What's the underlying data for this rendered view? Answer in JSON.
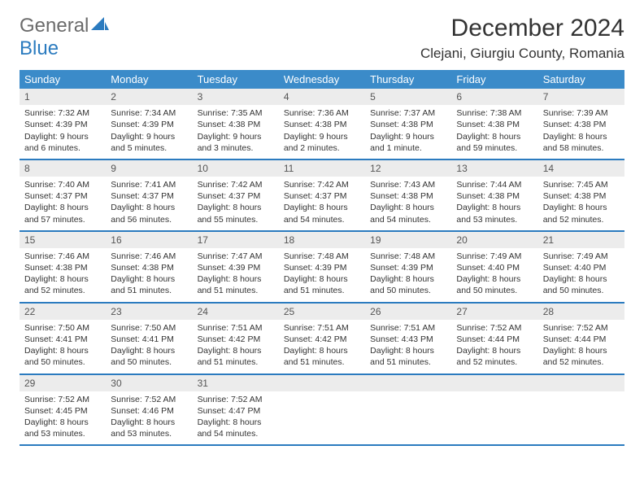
{
  "logo": {
    "text1": "General",
    "text2": "Blue"
  },
  "title": "December 2024",
  "location": "Clejani, Giurgiu County, Romania",
  "colors": {
    "headerBg": "#3b8bc9",
    "headerText": "#ffffff",
    "ruler": "#2b7bbf",
    "dayNumBg": "#ececec",
    "bodyText": "#333333",
    "logoGray": "#6b6b6b",
    "logoBlue": "#2b7bbf",
    "background": "#ffffff"
  },
  "dayNames": [
    "Sunday",
    "Monday",
    "Tuesday",
    "Wednesday",
    "Thursday",
    "Friday",
    "Saturday"
  ],
  "weeks": [
    [
      {
        "n": "1",
        "sr": "7:32 AM",
        "ss": "4:39 PM",
        "dl": "9 hours and 6 minutes."
      },
      {
        "n": "2",
        "sr": "7:34 AM",
        "ss": "4:39 PM",
        "dl": "9 hours and 5 minutes."
      },
      {
        "n": "3",
        "sr": "7:35 AM",
        "ss": "4:38 PM",
        "dl": "9 hours and 3 minutes."
      },
      {
        "n": "4",
        "sr": "7:36 AM",
        "ss": "4:38 PM",
        "dl": "9 hours and 2 minutes."
      },
      {
        "n": "5",
        "sr": "7:37 AM",
        "ss": "4:38 PM",
        "dl": "9 hours and 1 minute."
      },
      {
        "n": "6",
        "sr": "7:38 AM",
        "ss": "4:38 PM",
        "dl": "8 hours and 59 minutes."
      },
      {
        "n": "7",
        "sr": "7:39 AM",
        "ss": "4:38 PM",
        "dl": "8 hours and 58 minutes."
      }
    ],
    [
      {
        "n": "8",
        "sr": "7:40 AM",
        "ss": "4:37 PM",
        "dl": "8 hours and 57 minutes."
      },
      {
        "n": "9",
        "sr": "7:41 AM",
        "ss": "4:37 PM",
        "dl": "8 hours and 56 minutes."
      },
      {
        "n": "10",
        "sr": "7:42 AM",
        "ss": "4:37 PM",
        "dl": "8 hours and 55 minutes."
      },
      {
        "n": "11",
        "sr": "7:42 AM",
        "ss": "4:37 PM",
        "dl": "8 hours and 54 minutes."
      },
      {
        "n": "12",
        "sr": "7:43 AM",
        "ss": "4:38 PM",
        "dl": "8 hours and 54 minutes."
      },
      {
        "n": "13",
        "sr": "7:44 AM",
        "ss": "4:38 PM",
        "dl": "8 hours and 53 minutes."
      },
      {
        "n": "14",
        "sr": "7:45 AM",
        "ss": "4:38 PM",
        "dl": "8 hours and 52 minutes."
      }
    ],
    [
      {
        "n": "15",
        "sr": "7:46 AM",
        "ss": "4:38 PM",
        "dl": "8 hours and 52 minutes."
      },
      {
        "n": "16",
        "sr": "7:46 AM",
        "ss": "4:38 PM",
        "dl": "8 hours and 51 minutes."
      },
      {
        "n": "17",
        "sr": "7:47 AM",
        "ss": "4:39 PM",
        "dl": "8 hours and 51 minutes."
      },
      {
        "n": "18",
        "sr": "7:48 AM",
        "ss": "4:39 PM",
        "dl": "8 hours and 51 minutes."
      },
      {
        "n": "19",
        "sr": "7:48 AM",
        "ss": "4:39 PM",
        "dl": "8 hours and 50 minutes."
      },
      {
        "n": "20",
        "sr": "7:49 AM",
        "ss": "4:40 PM",
        "dl": "8 hours and 50 minutes."
      },
      {
        "n": "21",
        "sr": "7:49 AM",
        "ss": "4:40 PM",
        "dl": "8 hours and 50 minutes."
      }
    ],
    [
      {
        "n": "22",
        "sr": "7:50 AM",
        "ss": "4:41 PM",
        "dl": "8 hours and 50 minutes."
      },
      {
        "n": "23",
        "sr": "7:50 AM",
        "ss": "4:41 PM",
        "dl": "8 hours and 50 minutes."
      },
      {
        "n": "24",
        "sr": "7:51 AM",
        "ss": "4:42 PM",
        "dl": "8 hours and 51 minutes."
      },
      {
        "n": "25",
        "sr": "7:51 AM",
        "ss": "4:42 PM",
        "dl": "8 hours and 51 minutes."
      },
      {
        "n": "26",
        "sr": "7:51 AM",
        "ss": "4:43 PM",
        "dl": "8 hours and 51 minutes."
      },
      {
        "n": "27",
        "sr": "7:52 AM",
        "ss": "4:44 PM",
        "dl": "8 hours and 52 minutes."
      },
      {
        "n": "28",
        "sr": "7:52 AM",
        "ss": "4:44 PM",
        "dl": "8 hours and 52 minutes."
      }
    ],
    [
      {
        "n": "29",
        "sr": "7:52 AM",
        "ss": "4:45 PM",
        "dl": "8 hours and 53 minutes."
      },
      {
        "n": "30",
        "sr": "7:52 AM",
        "ss": "4:46 PM",
        "dl": "8 hours and 53 minutes."
      },
      {
        "n": "31",
        "sr": "7:52 AM",
        "ss": "4:47 PM",
        "dl": "8 hours and 54 minutes."
      },
      null,
      null,
      null,
      null
    ]
  ],
  "labels": {
    "sunrise": "Sunrise:",
    "sunset": "Sunset:",
    "daylight": "Daylight:"
  }
}
